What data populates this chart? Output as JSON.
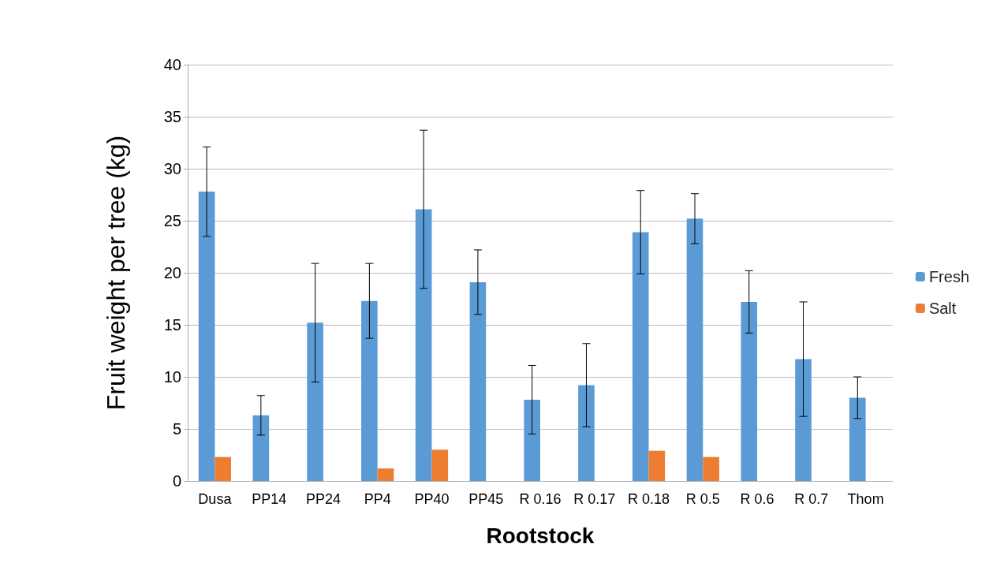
{
  "chart_data": {
    "type": "bar",
    "xlabel": "Rootstock",
    "ylabel": "Fruit weight per tree (kg)",
    "categories": [
      "Dusa",
      "PP14",
      "PP24",
      "PP4",
      "PP40",
      "PP45",
      "R 0.16",
      "R 0.17",
      "R 0.18",
      "R 0.5",
      "R 0.6",
      "R 0.7",
      "Thom"
    ],
    "series": [
      {
        "name": "Fresh",
        "color": "#5b9bd5",
        "values": [
          27.8,
          6.3,
          15.2,
          17.3,
          26.1,
          19.1,
          7.8,
          9.2,
          23.9,
          25.2,
          17.2,
          11.7,
          8.0
        ],
        "errors": [
          4.3,
          1.9,
          5.7,
          3.6,
          7.6,
          3.1,
          3.3,
          4.0,
          4.0,
          2.4,
          3.0,
          5.5,
          2.0
        ]
      },
      {
        "name": "Salt",
        "color": "#ed7d31",
        "values": [
          2.3,
          null,
          null,
          1.2,
          3.0,
          null,
          null,
          null,
          2.9,
          2.3,
          null,
          null,
          null
        ]
      }
    ],
    "ylim": [
      0,
      40
    ],
    "yticks": [
      0,
      5,
      10,
      15,
      20,
      25,
      30,
      35,
      40
    ],
    "grid": "y",
    "legend": "right"
  }
}
